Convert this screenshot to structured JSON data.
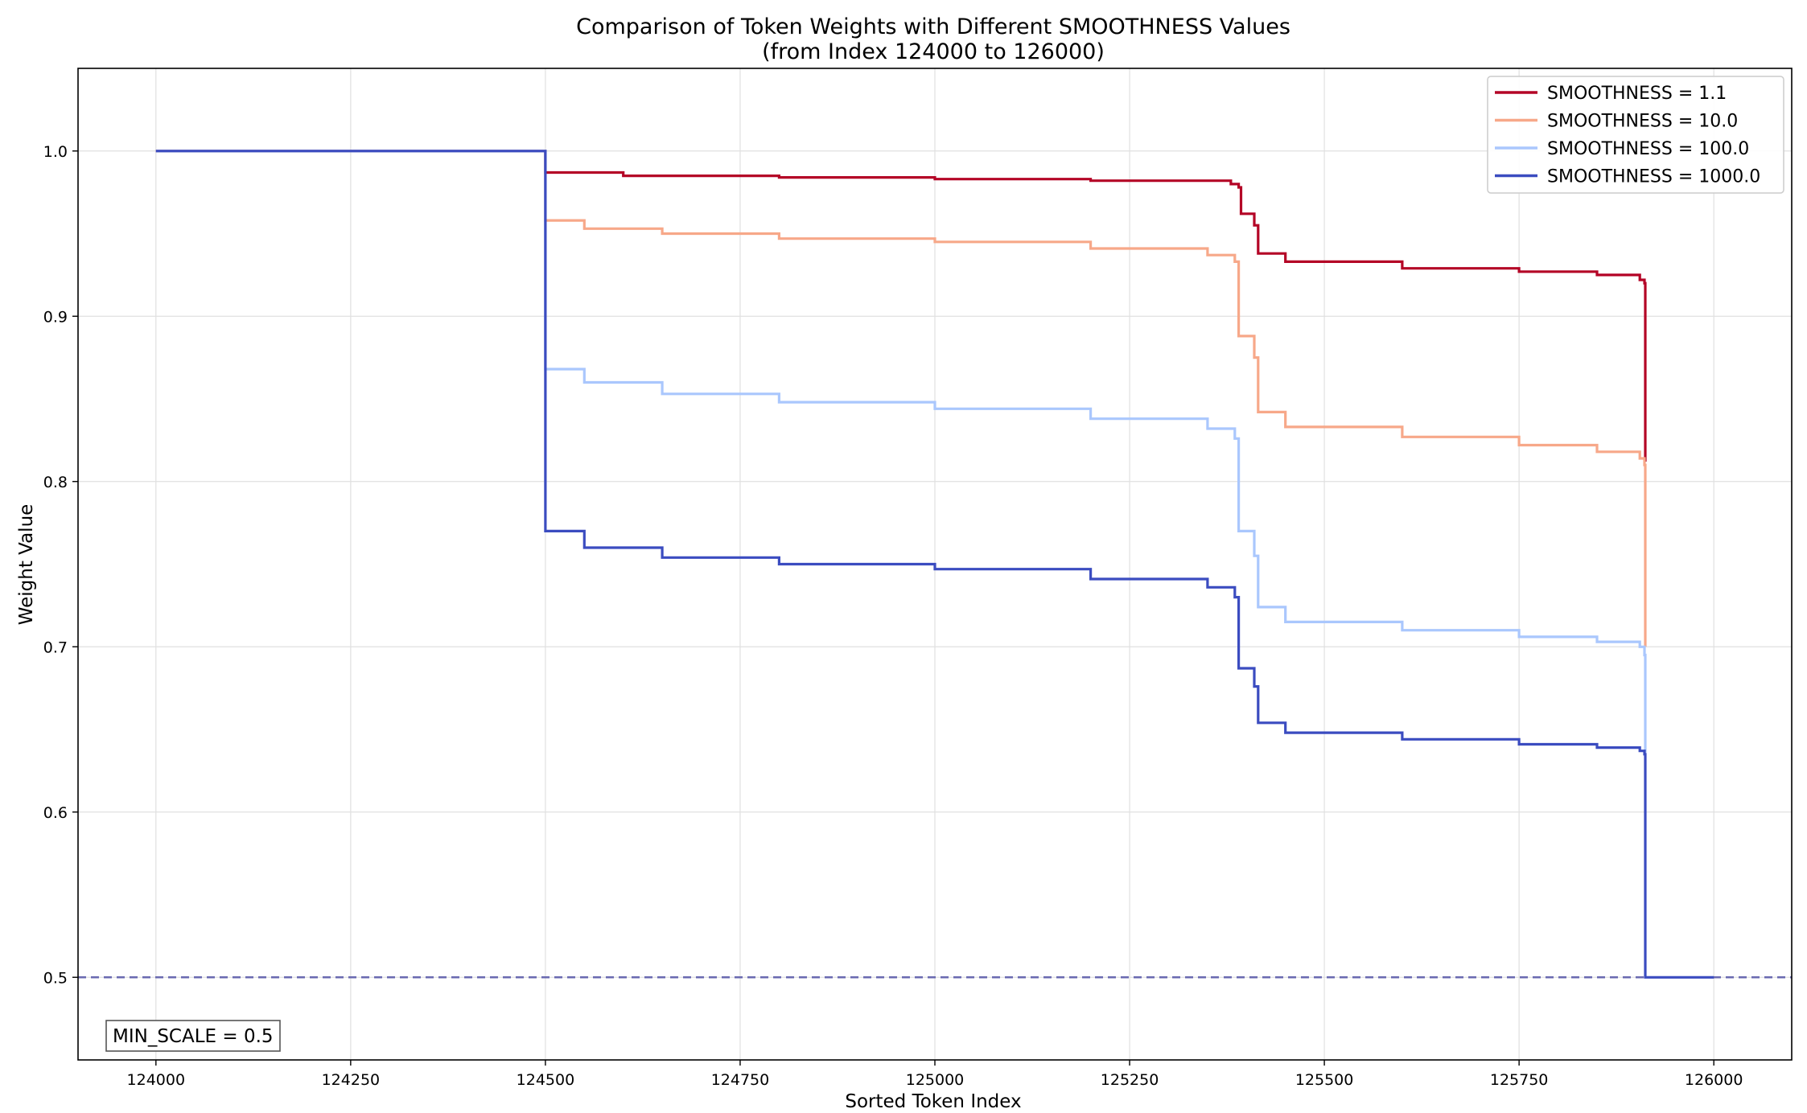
{
  "chart_data": {
    "type": "line",
    "title": "Comparison of Token Weights with Different SMOOTHNESS Values",
    "subtitle": "(from Index 124000 to 126000)",
    "xlabel": "Sorted Token Index",
    "ylabel": "Weight Value",
    "xlim": [
      123900,
      126100
    ],
    "ylim": [
      0.45,
      1.05
    ],
    "xticks": [
      124000,
      124250,
      124500,
      124750,
      125000,
      125250,
      125500,
      125750,
      126000
    ],
    "yticks": [
      0.5,
      0.6,
      0.7,
      0.8,
      0.9,
      1.0
    ],
    "ytick_labels": [
      "0.5",
      "0.6",
      "0.7",
      "0.8",
      "0.9",
      "1.0"
    ],
    "grid": true,
    "legend_position": "top-right",
    "reference_line": {
      "y": 0.5,
      "style": "dashed",
      "color": "#6a6ab0"
    },
    "annotation": "MIN_SCALE = 0.5",
    "series": [
      {
        "name": "SMOOTHNESS = 1.1",
        "color": "#b40426",
        "points": [
          [
            124000,
            1.0
          ],
          [
            124499,
            1.0
          ],
          [
            124500,
            0.987
          ],
          [
            124600,
            0.985
          ],
          [
            124800,
            0.984
          ],
          [
            125000,
            0.983
          ],
          [
            125200,
            0.982
          ],
          [
            125380,
            0.98
          ],
          [
            125390,
            0.978
          ],
          [
            125393,
            0.962
          ],
          [
            125410,
            0.955
          ],
          [
            125415,
            0.938
          ],
          [
            125450,
            0.933
          ],
          [
            125600,
            0.929
          ],
          [
            125750,
            0.927
          ],
          [
            125850,
            0.925
          ],
          [
            125905,
            0.922
          ],
          [
            125911,
            0.92
          ],
          [
            125912,
            0.812
          ]
        ]
      },
      {
        "name": "SMOOTHNESS = 10.0",
        "color": "#f7a889",
        "points": [
          [
            124000,
            1.0
          ],
          [
            124499,
            1.0
          ],
          [
            124500,
            0.958
          ],
          [
            124550,
            0.953
          ],
          [
            124650,
            0.95
          ],
          [
            124800,
            0.947
          ],
          [
            125000,
            0.945
          ],
          [
            125200,
            0.941
          ],
          [
            125350,
            0.937
          ],
          [
            125385,
            0.933
          ],
          [
            125390,
            0.888
          ],
          [
            125410,
            0.875
          ],
          [
            125415,
            0.842
          ],
          [
            125450,
            0.833
          ],
          [
            125600,
            0.827
          ],
          [
            125750,
            0.822
          ],
          [
            125850,
            0.818
          ],
          [
            125905,
            0.814
          ],
          [
            125911,
            0.81
          ],
          [
            125912,
            0.7
          ]
        ]
      },
      {
        "name": "SMOOTHNESS = 100.0",
        "color": "#aac7fd",
        "points": [
          [
            124000,
            1.0
          ],
          [
            124499,
            1.0
          ],
          [
            124500,
            0.868
          ],
          [
            124550,
            0.86
          ],
          [
            124650,
            0.853
          ],
          [
            124800,
            0.848
          ],
          [
            125000,
            0.844
          ],
          [
            125200,
            0.838
          ],
          [
            125350,
            0.832
          ],
          [
            125385,
            0.826
          ],
          [
            125390,
            0.77
          ],
          [
            125410,
            0.755
          ],
          [
            125415,
            0.724
          ],
          [
            125450,
            0.715
          ],
          [
            125600,
            0.71
          ],
          [
            125750,
            0.706
          ],
          [
            125850,
            0.703
          ],
          [
            125905,
            0.7
          ],
          [
            125911,
            0.695
          ],
          [
            125912,
            0.636
          ]
        ]
      },
      {
        "name": "SMOOTHNESS = 1000.0",
        "color": "#3b4cc0",
        "points": [
          [
            124000,
            1.0
          ],
          [
            124499,
            1.0
          ],
          [
            124500,
            0.77
          ],
          [
            124550,
            0.76
          ],
          [
            124650,
            0.754
          ],
          [
            124800,
            0.75
          ],
          [
            125000,
            0.747
          ],
          [
            125200,
            0.741
          ],
          [
            125350,
            0.736
          ],
          [
            125385,
            0.73
          ],
          [
            125390,
            0.687
          ],
          [
            125410,
            0.676
          ],
          [
            125415,
            0.654
          ],
          [
            125450,
            0.648
          ],
          [
            125600,
            0.644
          ],
          [
            125750,
            0.641
          ],
          [
            125850,
            0.639
          ],
          [
            125905,
            0.637
          ],
          [
            125911,
            0.635
          ],
          [
            125912,
            0.5
          ],
          [
            126000,
            0.5
          ]
        ]
      }
    ]
  }
}
